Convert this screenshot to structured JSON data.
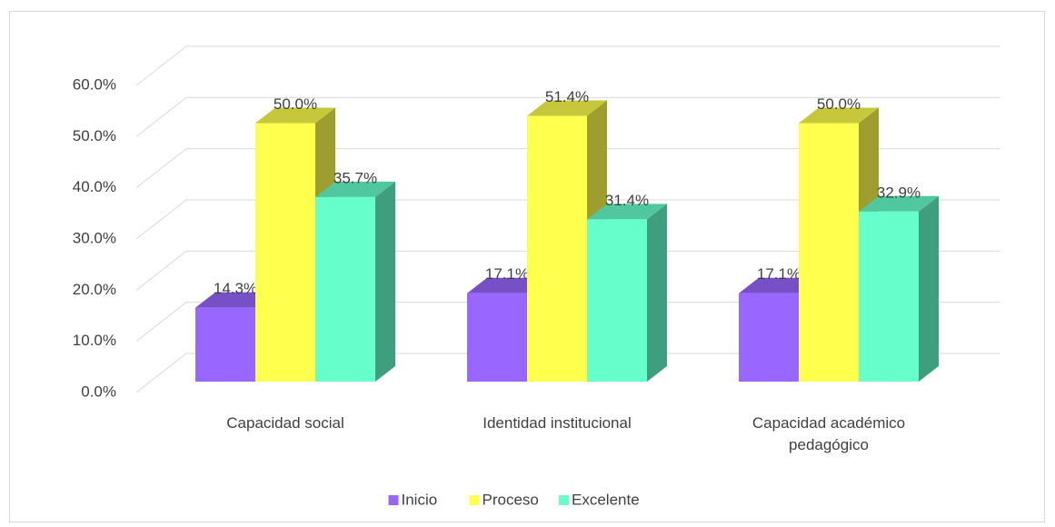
{
  "chart_data": {
    "type": "bar3d",
    "categories": [
      "Capacidad social",
      "Identidad institucional",
      "Capacidad académico pedagógico"
    ],
    "series": [
      {
        "name": "Inicio",
        "color": "#9966ff",
        "values": [
          14.3,
          17.1,
          17.1
        ],
        "value_labels": [
          "14.3%",
          "17.1%",
          "17.1%"
        ]
      },
      {
        "name": "Proceso",
        "color": "#ffff4d",
        "values": [
          50.0,
          51.4,
          50.0
        ],
        "value_labels": [
          "50.0%",
          "51.4%",
          "50.0%"
        ]
      },
      {
        "name": "Excelente",
        "color": "#66ffcc",
        "values": [
          35.7,
          31.4,
          32.9
        ],
        "value_labels": [
          "35.7%",
          "31.4%",
          "32.9%"
        ]
      }
    ],
    "ylim": [
      0,
      60
    ],
    "yticks": [
      {
        "value": 0,
        "label": "0.0%"
      },
      {
        "value": 10,
        "label": "10.0%"
      },
      {
        "value": 20,
        "label": "20.0%"
      },
      {
        "value": 30,
        "label": "30.0%"
      },
      {
        "value": 40,
        "label": "40.0%"
      },
      {
        "value": 50,
        "label": "50.0%"
      },
      {
        "value": 60,
        "label": "60.0%"
      }
    ],
    "grid": true,
    "legend": "bottom"
  }
}
